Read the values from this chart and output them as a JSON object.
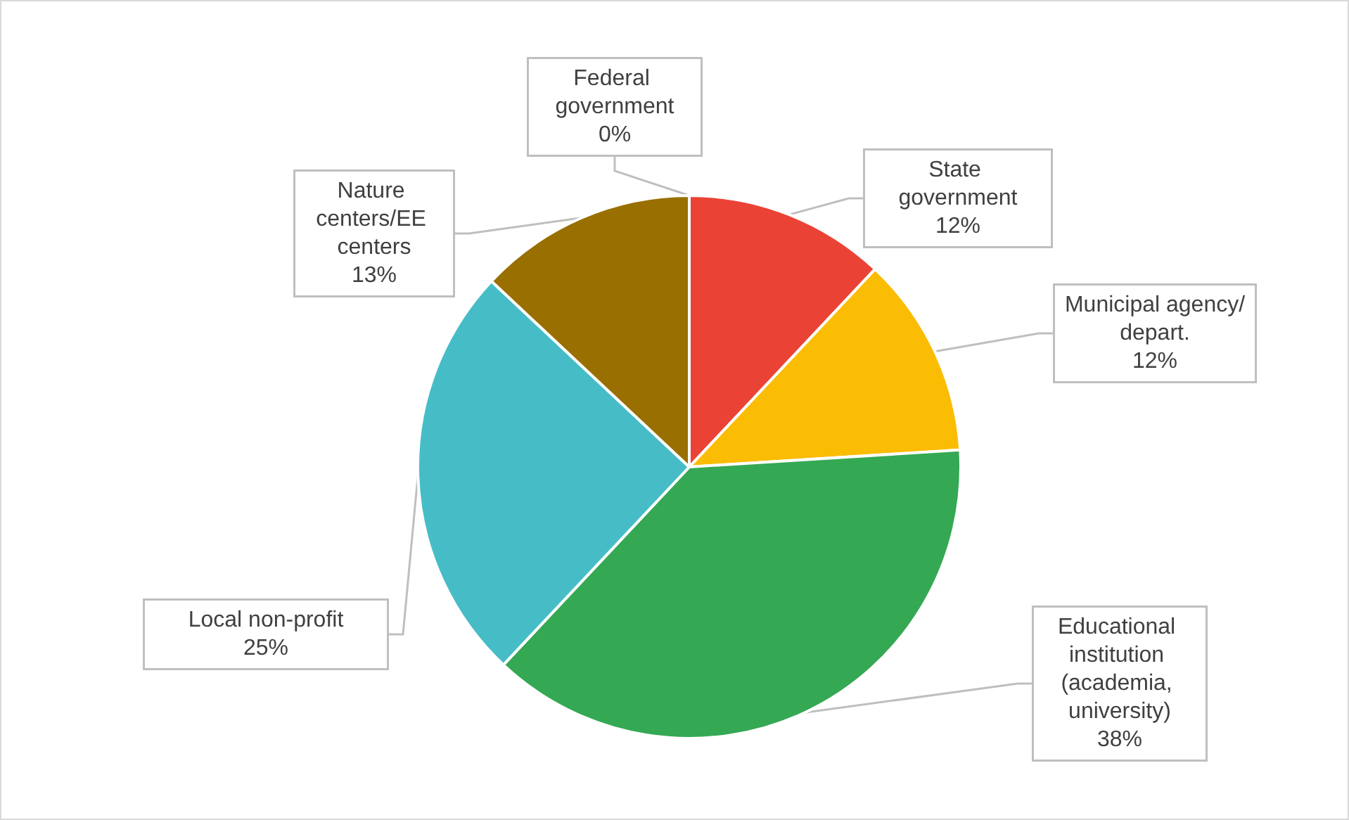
{
  "chart_data": {
    "type": "pie",
    "categories": [
      "Federal government",
      "State government",
      "Municipal agency/depart.",
      "Educational institution (academia, university)",
      "Local non-profit",
      "Nature centers/EE centers"
    ],
    "values": [
      0,
      12,
      12,
      38,
      25,
      13
    ],
    "colors": [
      "#4472c4",
      "#ea4335",
      "#fbbc04",
      "#34a853",
      "#46bdc6",
      "#996f00"
    ],
    "value_labels": [
      "0%",
      "12%",
      "12%",
      "38%",
      "25%",
      "13%"
    ],
    "legend": false
  }
}
